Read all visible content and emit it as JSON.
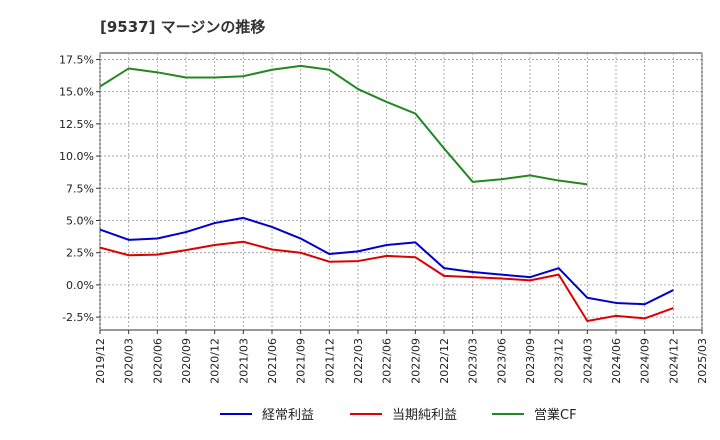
{
  "chart_data": {
    "type": "line",
    "title": "[9537]  マージンの推移",
    "x": [
      "2019/12",
      "2020/03",
      "2020/06",
      "2020/09",
      "2020/12",
      "2021/03",
      "2021/06",
      "2021/09",
      "2021/12",
      "2022/03",
      "2022/06",
      "2022/09",
      "2022/12",
      "2023/03",
      "2023/06",
      "2023/09",
      "2023/12",
      "2024/03",
      "2024/06",
      "2024/09",
      "2024/12",
      "2025/03"
    ],
    "y_ticks": [
      "17.5%",
      "15.0%",
      "12.5%",
      "10.0%",
      "7.5%",
      "5.0%",
      "2.5%",
      "0.0%",
      "-2.5%"
    ],
    "ylim": [
      -3.5,
      18.0
    ],
    "grid": true,
    "legend_position": "bottom",
    "series": [
      {
        "name": "経常利益",
        "color": "#0000cc",
        "values": [
          4.3,
          3.5,
          3.6,
          4.1,
          4.8,
          5.2,
          4.5,
          3.6,
          2.4,
          2.6,
          3.1,
          3.3,
          1.3,
          1.0,
          0.8,
          0.6,
          1.3,
          -1.0,
          -1.4,
          -1.5,
          -0.4,
          null
        ]
      },
      {
        "name": "当期純利益",
        "color": "#dd0000",
        "values": [
          2.9,
          2.3,
          2.35,
          2.7,
          3.1,
          3.35,
          2.75,
          2.5,
          1.8,
          1.85,
          2.25,
          2.15,
          0.7,
          0.6,
          0.5,
          0.35,
          0.8,
          -2.8,
          -2.4,
          -2.6,
          -1.8,
          null
        ]
      },
      {
        "name": "営業CF",
        "color": "#228822",
        "values": [
          15.4,
          16.8,
          16.5,
          16.1,
          16.1,
          16.2,
          16.7,
          17.0,
          16.7,
          15.2,
          14.2,
          13.3,
          10.6,
          8.0,
          8.2,
          8.5,
          8.1,
          7.8,
          null,
          null,
          null,
          null
        ]
      }
    ]
  }
}
